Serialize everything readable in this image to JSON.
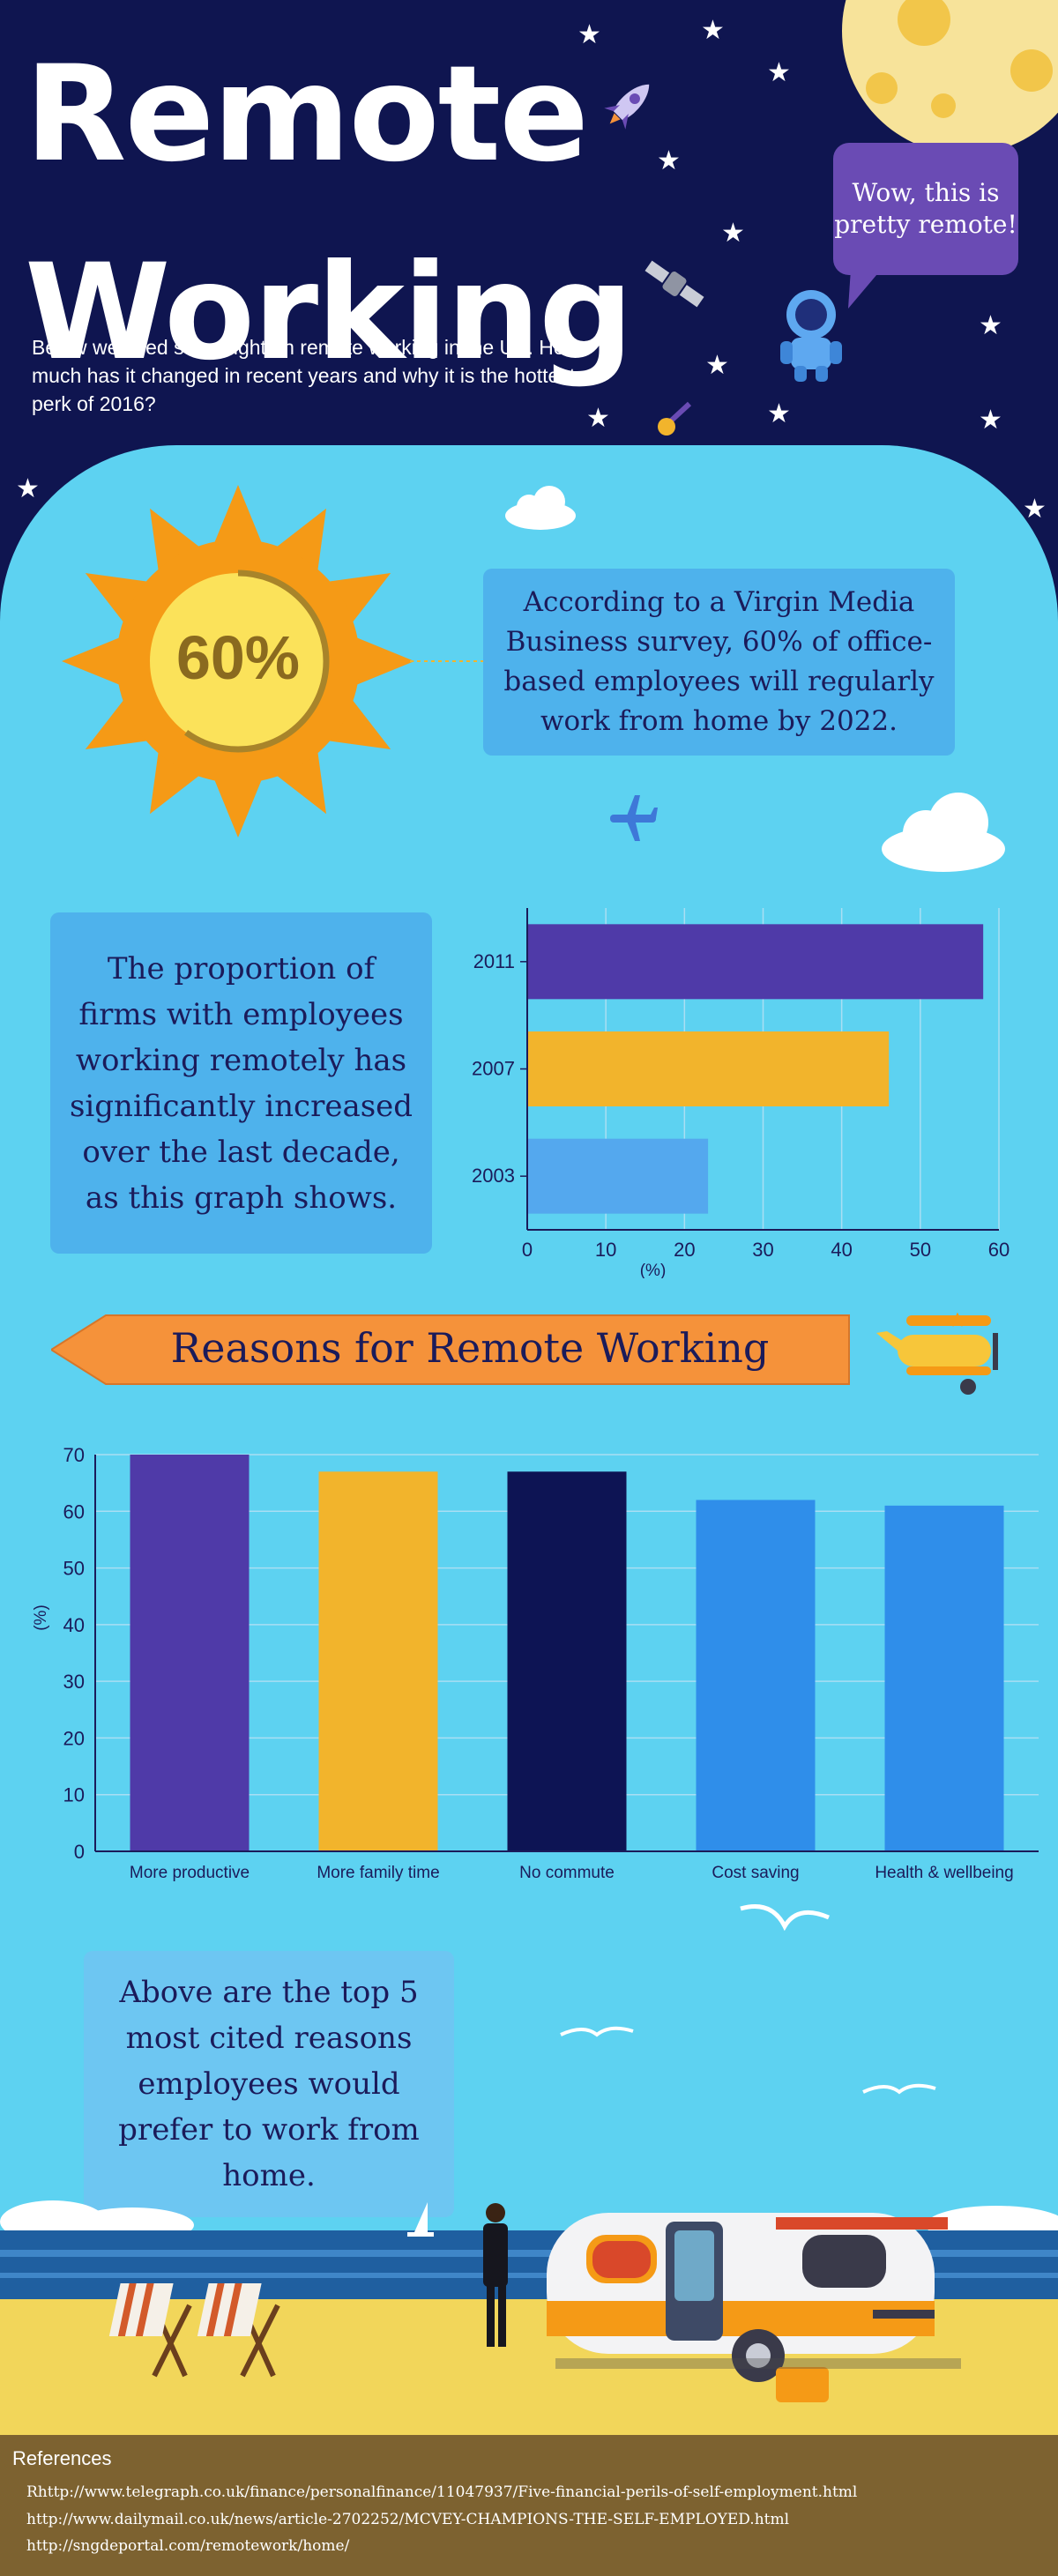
{
  "header": {
    "title": "Remote Working",
    "subtitle": "Below we shed some light on remote working in the UK. How much has it changed in recent years and why it is the hottest perk of 2016?",
    "bubble": "Wow, this is pretty remote!"
  },
  "stat": {
    "value": "60%",
    "text": "According to a Virgin Media Business survey, 60% of office-based employees will regularly work from home by 2022."
  },
  "firms_note": "The proportion of firms with employees working remotely has significantly increased over the last decade, as this graph shows.",
  "reasons_banner": "Reasons for Remote Working",
  "reasons_note": "Above are the top 5 most cited reasons employees would prefer to work from home.",
  "colors": {
    "purple": "#4f3aa8",
    "yellow": "#f2b42c",
    "navy": "#0d1454",
    "blue": "#2f8eea",
    "lightblue": "#54a8ee",
    "sky": "#5dd2f1",
    "orange": "#f5923a"
  },
  "chart_data": [
    {
      "type": "bar",
      "orientation": "horizontal",
      "categories": [
        "2011",
        "2007",
        "2003"
      ],
      "values": [
        58,
        46,
        23
      ],
      "colors": [
        "#4f3aa8",
        "#f2b42c",
        "#54a8ee"
      ],
      "xlabel": "(%)",
      "xlim": [
        0,
        60
      ],
      "xticks": [
        "0",
        "10",
        "20",
        "30",
        "40",
        "50",
        "60"
      ],
      "grid": true
    },
    {
      "type": "bar",
      "categories": [
        "More productive",
        "More family time",
        "No commute",
        "Cost saving",
        "Health & wellbeing"
      ],
      "values": [
        70,
        67,
        67,
        62,
        61
      ],
      "colors": [
        "#4f3aa8",
        "#f2b42c",
        "#0d1454",
        "#2f8eea",
        "#2f8eea"
      ],
      "ylabel": "(%)",
      "ylim": [
        0,
        70
      ],
      "yticks": [
        "0",
        "10",
        "20",
        "30",
        "40",
        "50",
        "60",
        "70"
      ],
      "grid": true
    }
  ],
  "references": {
    "title": "References",
    "links": [
      "Rhttp://www.telegraph.co.uk/finance/personalfinance/11047937/Five-financial-perils-of-self-employment.html",
      "http://www.dailymail.co.uk/news/article-2702252/MCVEY-CHAMPIONS-THE-SELF-EMPLOYED.html",
      "http://sngdeportal.com/remotework/home/"
    ]
  }
}
